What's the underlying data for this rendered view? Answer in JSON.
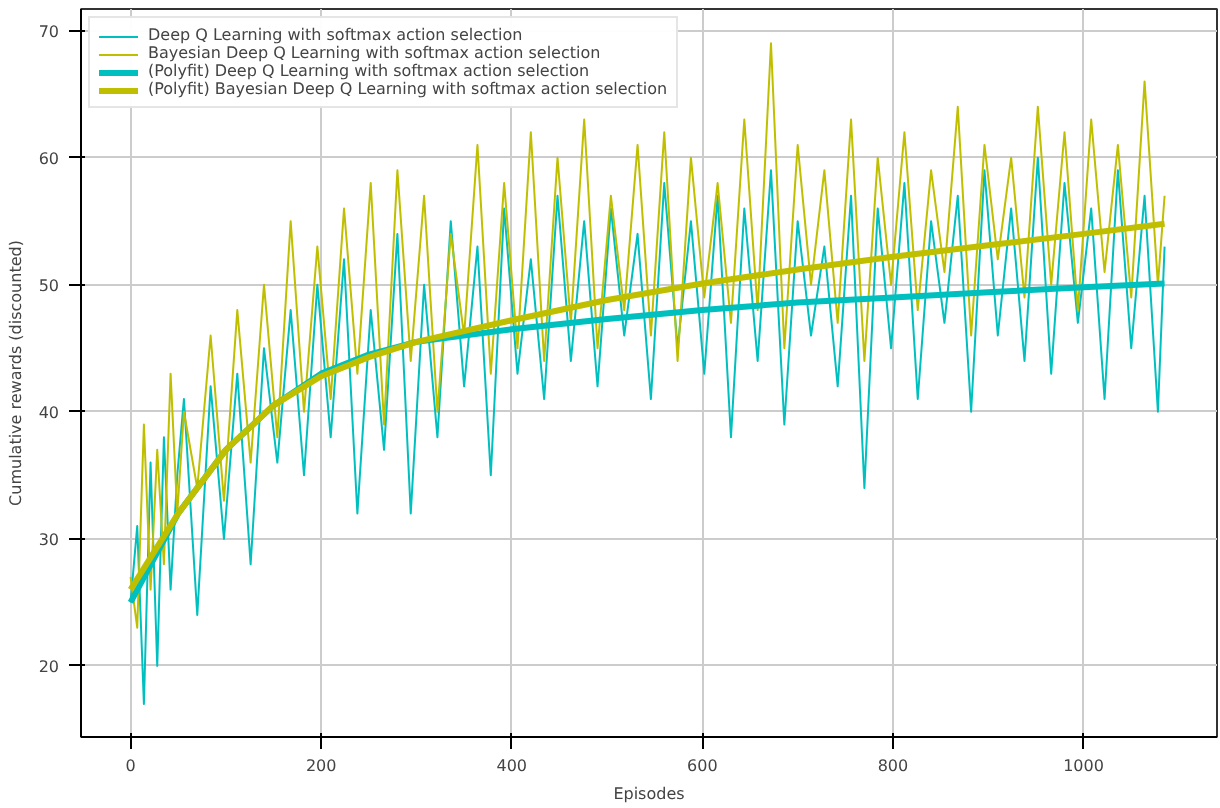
{
  "chart_data": {
    "type": "line",
    "xlabel": "Episodes",
    "ylabel": "Cumulative rewards (discounted)",
    "xlim": [
      -52,
      1140
    ],
    "ylim": [
      14.4,
      71.7
    ],
    "xticks": [
      0,
      200,
      400,
      600,
      800,
      1000
    ],
    "yticks": [
      20,
      30,
      40,
      50,
      60,
      70
    ],
    "grid": true,
    "legend": "top left",
    "series": [
      {
        "name": "Deep Q Learning with softmax action selection",
        "color": "#00bfbf",
        "x": [
          0,
          7,
          14,
          21,
          28,
          35,
          42,
          49,
          56,
          70,
          84,
          98,
          112,
          126,
          140,
          154,
          168,
          182,
          196,
          210,
          224,
          238,
          252,
          266,
          280,
          294,
          308,
          322,
          336,
          350,
          364,
          378,
          392,
          406,
          420,
          434,
          448,
          462,
          476,
          490,
          504,
          518,
          532,
          546,
          560,
          574,
          588,
          602,
          616,
          630,
          644,
          658,
          672,
          686,
          700,
          714,
          728,
          742,
          756,
          770,
          784,
          798,
          812,
          826,
          840,
          854,
          868,
          882,
          896,
          910,
          924,
          938,
          952,
          966,
          980,
          994,
          1008,
          1022,
          1036,
          1050,
          1064,
          1078,
          1085
        ],
        "values": [
          25,
          31,
          17,
          36,
          20,
          38,
          26,
          35,
          41,
          24,
          42,
          30,
          43,
          28,
          45,
          36,
          48,
          35,
          50,
          38,
          52,
          32,
          48,
          37,
          54,
          32,
          50,
          38,
          55,
          42,
          53,
          35,
          56,
          43,
          52,
          41,
          57,
          44,
          55,
          42,
          56,
          46,
          54,
          41,
          58,
          45,
          55,
          43,
          57,
          38,
          56,
          44,
          59,
          39,
          55,
          46,
          53,
          42,
          57,
          34,
          56,
          45,
          58,
          41,
          55,
          47,
          57,
          40,
          59,
          46,
          56,
          44,
          60,
          43,
          58,
          47,
          56,
          41,
          59,
          45,
          57,
          40,
          53
        ]
      },
      {
        "name": "Bayesian Deep Q Learning with softmax action selection",
        "color": "#bfbf00",
        "x": [
          0,
          7,
          14,
          21,
          28,
          35,
          42,
          49,
          56,
          70,
          84,
          98,
          112,
          126,
          140,
          154,
          168,
          182,
          196,
          210,
          224,
          238,
          252,
          266,
          280,
          294,
          308,
          322,
          336,
          350,
          364,
          378,
          392,
          406,
          420,
          434,
          448,
          462,
          476,
          490,
          504,
          518,
          532,
          546,
          560,
          574,
          588,
          602,
          616,
          630,
          644,
          658,
          672,
          686,
          700,
          714,
          728,
          742,
          756,
          770,
          784,
          798,
          812,
          826,
          840,
          854,
          868,
          882,
          896,
          910,
          924,
          938,
          952,
          966,
          980,
          994,
          1008,
          1022,
          1036,
          1050,
          1064,
          1078,
          1085
        ],
        "values": [
          27,
          23,
          39,
          26,
          37,
          28,
          43,
          32,
          40,
          34,
          46,
          33,
          48,
          36,
          50,
          38,
          55,
          40,
          53,
          41,
          56,
          43,
          58,
          39,
          59,
          44,
          57,
          40,
          54,
          46,
          61,
          43,
          58,
          45,
          62,
          44,
          60,
          47,
          63,
          45,
          57,
          48,
          61,
          46,
          62,
          44,
          60,
          49,
          58,
          47,
          63,
          48,
          69,
          45,
          61,
          50,
          59,
          47,
          63,
          44,
          60,
          50,
          62,
          48,
          59,
          51,
          64,
          46,
          61,
          52,
          60,
          49,
          64,
          50,
          62,
          48,
          63,
          51,
          61,
          49,
          66,
          50,
          57
        ]
      },
      {
        "name": "(Polyfit) Deep Q Learning with softmax action selection",
        "color": "#00bfbf",
        "x": [
          0,
          50,
          100,
          150,
          200,
          250,
          300,
          400,
          500,
          600,
          700,
          800,
          900,
          1000,
          1085
        ],
        "values": [
          25,
          32,
          37,
          40.5,
          43,
          44.5,
          45.5,
          46.5,
          47.3,
          48,
          48.6,
          49,
          49.4,
          49.8,
          50.1
        ]
      },
      {
        "name": "(Polyfit) Bayesian Deep Q Learning with softmax action selection",
        "color": "#bfbf00",
        "x": [
          0,
          50,
          100,
          150,
          200,
          250,
          300,
          400,
          500,
          600,
          700,
          800,
          900,
          1000,
          1085
        ],
        "values": [
          26,
          32,
          37,
          40.5,
          42.8,
          44.3,
          45.5,
          47.2,
          48.8,
          50.1,
          51.2,
          52.2,
          53.1,
          54,
          54.8
        ]
      }
    ]
  }
}
